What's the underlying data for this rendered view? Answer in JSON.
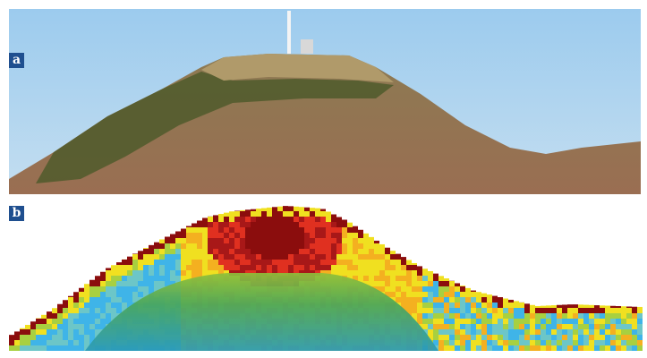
{
  "panels": [
    {
      "label": "a",
      "content": "photo"
    },
    {
      "label": "b",
      "content": "density-map"
    }
  ],
  "colors": {
    "label_bg": "#1f4f8f",
    "sky": "#a8d0ee",
    "high": "#8b0d0d",
    "mid": "#f0e020",
    "low": "#3fb4e8",
    "dome": "#3aa07a"
  }
}
